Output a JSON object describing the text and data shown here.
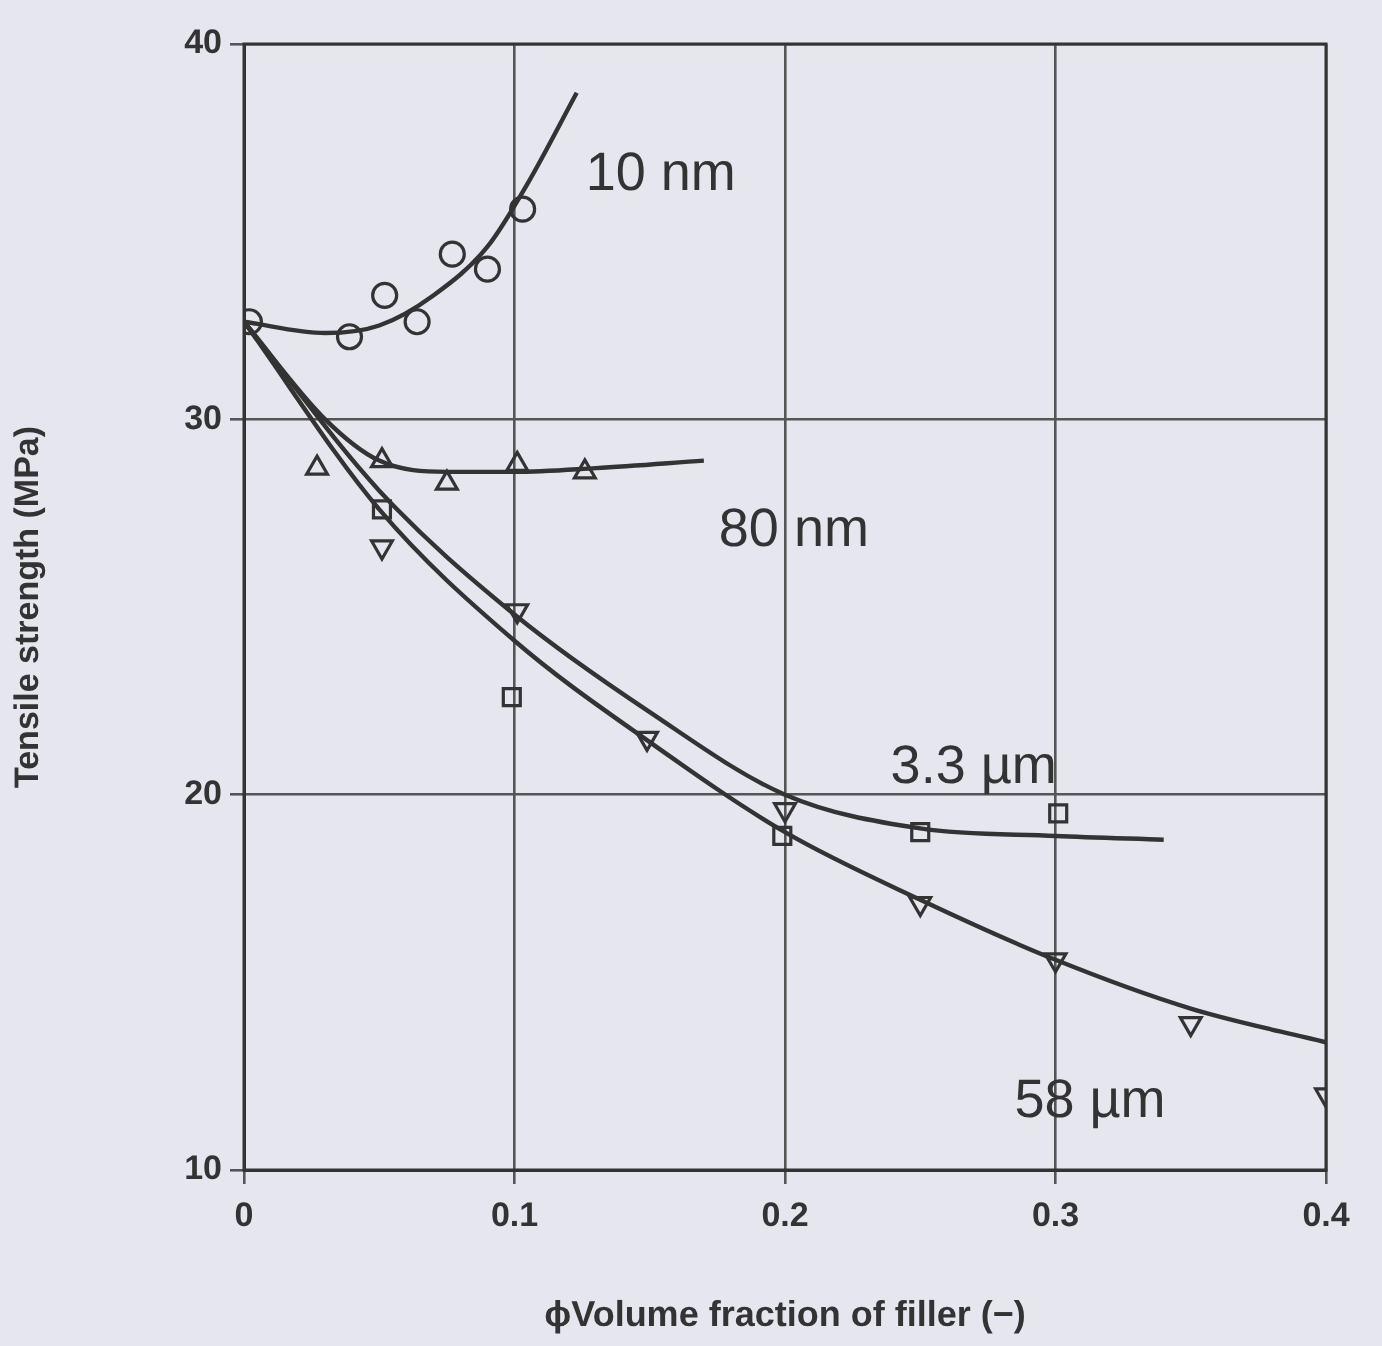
{
  "chart_data": {
    "type": "scatter",
    "xlabel": "ϕVolume fraction of filler (−)",
    "ylabel": "Tensile strength (MPa)",
    "xlim": [
      0,
      0.4
    ],
    "xticks": [
      0,
      0.1,
      0.2,
      0.3,
      0.4
    ],
    "ylim": [
      10,
      40
    ],
    "yticks": [
      10,
      20,
      30,
      40
    ],
    "grid": true,
    "legend": false,
    "series": [
      {
        "type": "scatter",
        "marker": "circle",
        "color": "#333333",
        "x": [
          0.002,
          0.039,
          0.052,
          0.064,
          0.077,
          0.09,
          0.103
        ],
        "values": [
          32.6,
          32.2,
          33.3,
          32.6,
          34.4,
          34.0,
          35.6
        ]
      },
      {
        "type": "scatter",
        "marker": "triangle",
        "color": "#333333",
        "x": [
          0.027,
          0.051,
          0.075,
          0.101,
          0.126
        ],
        "values": [
          28.7,
          28.9,
          28.3,
          28.8,
          28.6
        ]
      },
      {
        "type": "scatter",
        "marker": "square",
        "color": "#333333",
        "x": [
          0.051,
          0.099,
          0.199,
          0.25,
          0.301
        ],
        "values": [
          27.6,
          22.6,
          18.9,
          19.0,
          19.5
        ]
      },
      {
        "type": "scatter",
        "marker": "triangle-down",
        "color": "#333333",
        "x": [
          0.051,
          0.101,
          0.149,
          0.2,
          0.25,
          0.3,
          0.35,
          0.4
        ],
        "values": [
          26.6,
          24.9,
          21.5,
          19.6,
          17.1,
          15.6,
          13.9,
          12.0
        ]
      },
      {
        "type": "line",
        "name": "10 nm",
        "marker": "none",
        "color": "#333333",
        "x": [
          0,
          0.03,
          0.05,
          0.07,
          0.09,
          0.105,
          0.123
        ],
        "values": [
          32.6,
          32.3,
          32.5,
          33.3,
          34.6,
          36.3,
          38.7
        ]
      },
      {
        "type": "line",
        "name": "80 nm",
        "marker": "none",
        "color": "#333333",
        "x": [
          0,
          0.03,
          0.05,
          0.075,
          0.1,
          0.13,
          0.17
        ],
        "values": [
          32.6,
          30.0,
          28.9,
          28.6,
          28.6,
          28.7,
          28.9
        ]
      },
      {
        "type": "line",
        "name": "3.3 µm",
        "marker": "none",
        "color": "#333333",
        "x": [
          0,
          0.05,
          0.1,
          0.15,
          0.2,
          0.25,
          0.3,
          0.34
        ],
        "values": [
          32.6,
          28.1,
          24.8,
          22.2,
          20.0,
          19.1,
          18.9,
          18.8
        ]
      },
      {
        "type": "line",
        "name": "58 µm",
        "marker": "none",
        "color": "#333333",
        "x": [
          0,
          0.05,
          0.1,
          0.15,
          0.2,
          0.25,
          0.3,
          0.35,
          0.4
        ],
        "values": [
          32.6,
          27.6,
          24.1,
          21.4,
          19.0,
          17.2,
          15.6,
          14.3,
          13.4
        ]
      }
    ]
  }
}
